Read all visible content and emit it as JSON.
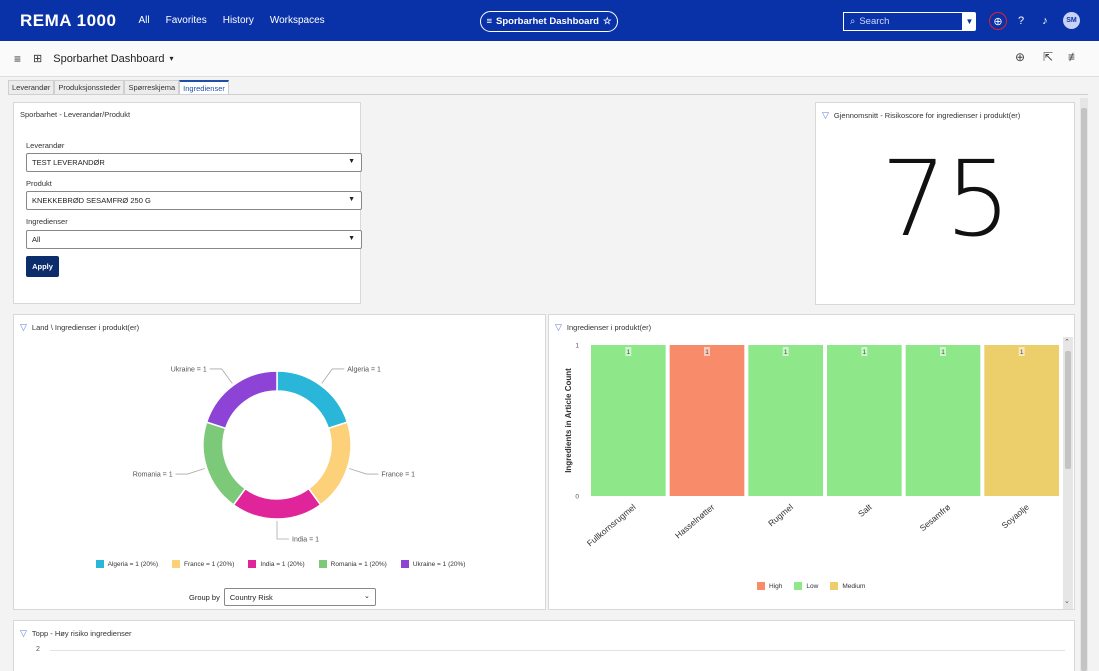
{
  "topbar": {
    "brand": "REMA 1000",
    "nav": [
      "All",
      "Favorites",
      "History",
      "Workspaces"
    ],
    "title_pill": "Sporbarhet Dashboard",
    "search_placeholder": "Search",
    "avatar": "SM",
    "bg_color": "#0a32a8"
  },
  "subbar": {
    "dashboard_name": "Sporbarhet Dashboard"
  },
  "tabs": [
    "Leverandør",
    "Produksjonssteder",
    "Spørreskjema",
    "Ingredienser"
  ],
  "active_tab": "Ingredienser",
  "filter_panel": {
    "title": "Sporbarhet - Leverandør/Produkt",
    "fields": [
      {
        "label": "Leverandør",
        "value": "TEST LEVERANDØR"
      },
      {
        "label": "Produkt",
        "value": "KNEKKEBRØD SESAMFRØ 250 G"
      },
      {
        "label": "Ingredienser",
        "value": "All"
      }
    ],
    "apply_label": "Apply"
  },
  "score_panel": {
    "title": "Gjennomsnitt - Risikoscore for ingredienser i produkt(er)",
    "value": "75"
  },
  "country_panel": {
    "title": "Land \\ Ingredienser i produkt(er)",
    "group_by_label": "Group by",
    "group_by_value": "Country Risk",
    "legend": [
      {
        "label": "Algeria = 1 (20%)",
        "color": "#29b6d9"
      },
      {
        "label": "France = 1 (20%)",
        "color": "#fdd17a"
      },
      {
        "label": "India = 1 (20%)",
        "color": "#e0249a"
      },
      {
        "label": "Romania = 1 (20%)",
        "color": "#7cc97a"
      },
      {
        "label": "Ukraine = 1 (20%)",
        "color": "#8d44d6"
      }
    ]
  },
  "ingredients_panel": {
    "title": "Ingredienser i produkt(er)",
    "legend": [
      {
        "label": "High",
        "color": "#f88c6a"
      },
      {
        "label": "Low",
        "color": "#8ee88a"
      },
      {
        "label": "Medium",
        "color": "#ecce6a"
      }
    ]
  },
  "top_risk_panel": {
    "title": "Topp - Høy risiko ingredienser",
    "axis_tick": "2"
  },
  "chart_data": [
    {
      "type": "pie",
      "variant": "donut",
      "categories": [
        "Algeria",
        "France",
        "India",
        "Romania",
        "Ukraine"
      ],
      "values": [
        1,
        1,
        1,
        1,
        1
      ],
      "labels": [
        "Algeria = 1",
        "France = 1",
        "India = 1",
        "Romania = 1",
        "Ukraine = 1"
      ],
      "colors": [
        "#29b6d9",
        "#fdd17a",
        "#e0249a",
        "#7cc97a",
        "#8d44d6"
      ]
    },
    {
      "type": "bar",
      "categories": [
        "Fullkornsrugmel",
        "Hasselnøtter",
        "Rugmel",
        "Salt",
        "Sesamfrø",
        "Soyaolje"
      ],
      "values": [
        1,
        1,
        1,
        1,
        1,
        1
      ],
      "risk": [
        "Low",
        "High",
        "Low",
        "Low",
        "Low",
        "Medium"
      ],
      "risk_colors": {
        "High": "#f88c6a",
        "Low": "#8ee88a",
        "Medium": "#ecce6a"
      },
      "ylabel": "Ingredients in Article Count",
      "ylim": [
        0,
        1
      ],
      "yticks": [
        "0",
        "1"
      ],
      "data_labels": [
        "1",
        "1",
        "1",
        "1",
        "1",
        "1"
      ]
    }
  ]
}
